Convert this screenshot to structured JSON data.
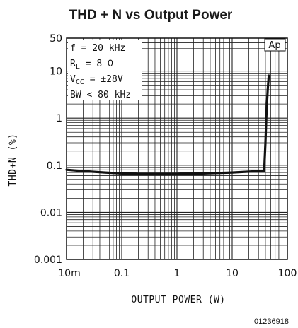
{
  "chart_data": {
    "type": "line",
    "title": "THD + N vs Output Power",
    "xlabel": "OUTPUT POWER (W)",
    "ylabel": "THD+N (%)",
    "x_scale": "log",
    "y_scale": "log",
    "xlim": [
      0.01,
      100
    ],
    "ylim": [
      0.001,
      50
    ],
    "x_ticks": [
      "10m",
      "0.1",
      "1",
      "10",
      "100"
    ],
    "x_tick_values": [
      0.01,
      0.1,
      1,
      10,
      100
    ],
    "y_ticks": [
      "0.001",
      "0.01",
      "0.1",
      "1",
      "10",
      "50"
    ],
    "y_tick_values": [
      0.001,
      0.01,
      0.1,
      1,
      10,
      50
    ],
    "grid": true,
    "conditions": {
      "freq": "f = 20 kHz",
      "rl_main": "R",
      "rl_sub": "L",
      "rl_val": " = 8 Ω",
      "vcc_main": "V",
      "vcc_sub": "CC",
      "vcc_val": " = ±28V",
      "bw": "BW < 80 kHz"
    },
    "badge": "Ap",
    "figure_id": "01236918",
    "series": [
      {
        "x": [
          0.01,
          0.02,
          0.05,
          0.1,
          0.2,
          0.5,
          1,
          2,
          5,
          10,
          20,
          30,
          38,
          40,
          42,
          44,
          46
        ],
        "y": [
          0.08,
          0.075,
          0.07,
          0.067,
          0.065,
          0.065,
          0.065,
          0.066,
          0.068,
          0.07,
          0.073,
          0.075,
          0.075,
          0.3,
          1.5,
          4,
          8
        ],
        "color": "#111111"
      }
    ]
  }
}
